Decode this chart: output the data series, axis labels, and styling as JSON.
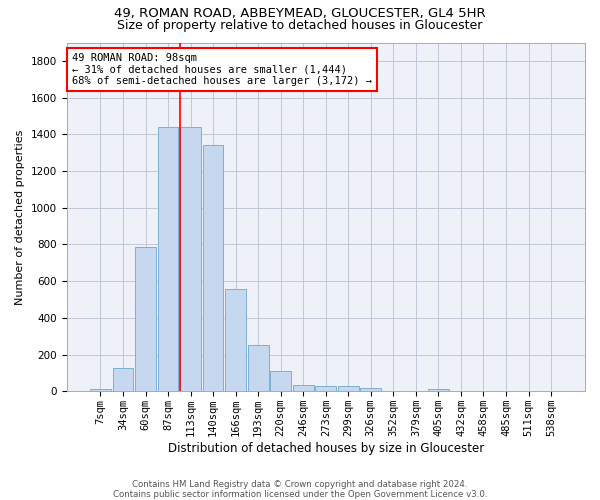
{
  "title_line1": "49, ROMAN ROAD, ABBEYMEAD, GLOUCESTER, GL4 5HR",
  "title_line2": "Size of property relative to detached houses in Gloucester",
  "xlabel": "Distribution of detached houses by size in Gloucester",
  "ylabel": "Number of detached properties",
  "bar_labels": [
    "7sqm",
    "34sqm",
    "60sqm",
    "87sqm",
    "113sqm",
    "140sqm",
    "166sqm",
    "193sqm",
    "220sqm",
    "246sqm",
    "273sqm",
    "299sqm",
    "326sqm",
    "352sqm",
    "379sqm",
    "405sqm",
    "432sqm",
    "458sqm",
    "485sqm",
    "511sqm",
    "538sqm"
  ],
  "bar_values": [
    15,
    125,
    785,
    1440,
    1440,
    1340,
    555,
    250,
    110,
    35,
    30,
    30,
    20,
    0,
    0,
    15,
    0,
    0,
    0,
    0,
    0
  ],
  "bar_color": "#c5d8f0",
  "bar_edgecolor": "#7ab0d4",
  "grid_color": "#c0c8d8",
  "background_color": "#eef2f8",
  "red_line_x": 3.52,
  "ylim": [
    0,
    1900
  ],
  "yticks": [
    0,
    200,
    400,
    600,
    800,
    1000,
    1200,
    1400,
    1600,
    1800
  ],
  "annotation_title": "49 ROMAN ROAD: 98sqm",
  "annotation_line1": "← 31% of detached houses are smaller (1,444)",
  "annotation_line2": "68% of semi-detached houses are larger (3,172) →",
  "footer_line1": "Contains HM Land Registry data © Crown copyright and database right 2024.",
  "footer_line2": "Contains public sector information licensed under the Open Government Licence v3.0.",
  "title1_fontsize": 9.5,
  "title2_fontsize": 9,
  "ylabel_fontsize": 8,
  "xlabel_fontsize": 8.5,
  "tick_fontsize": 7.5,
  "annot_fontsize": 7.5,
  "footer_fontsize": 6.2
}
